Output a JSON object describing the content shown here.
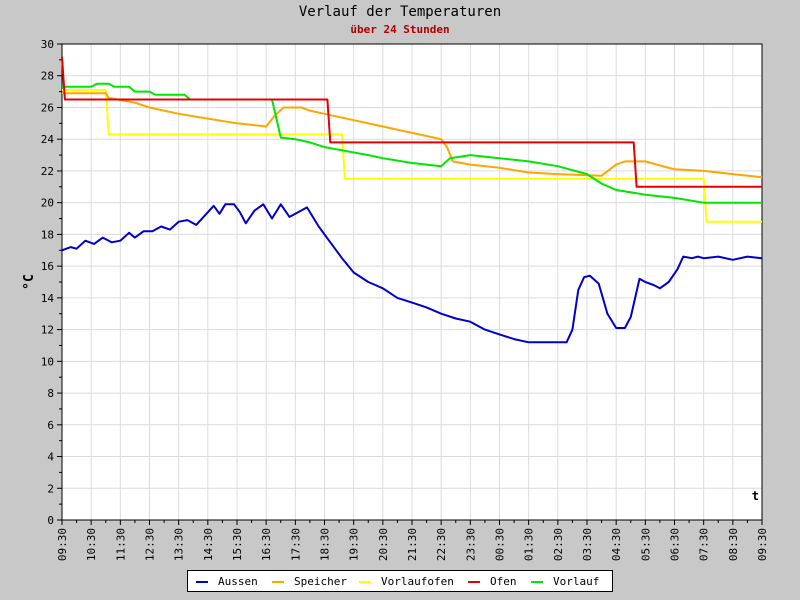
{
  "colors": {
    "Aussen": "#0000cc",
    "Speicher": "#ffa500",
    "Vorlaufofen": "#ffff00",
    "Ofen": "#e60000",
    "Vorlauf": "#00e600"
  },
  "chart_data": {
    "type": "line",
    "title": "Verlauf der Temperaturen",
    "subtitle": "über 24 Stunden",
    "ylabel": "°C",
    "xlabel": "t",
    "ylim": [
      0,
      30
    ],
    "yticks": [
      0,
      2,
      4,
      6,
      8,
      10,
      12,
      14,
      16,
      18,
      20,
      22,
      24,
      26,
      28,
      30
    ],
    "xticks": [
      "09:30",
      "10:30",
      "11:30",
      "12:30",
      "13:30",
      "14:30",
      "15:30",
      "16:30",
      "17:30",
      "18:30",
      "19:30",
      "20:30",
      "21:30",
      "22:30",
      "23:30",
      "00:30",
      "01:30",
      "02:30",
      "03:30",
      "04:30",
      "05:30",
      "06:30",
      "07:30",
      "08:30",
      "09:30"
    ],
    "grid": true,
    "legend_position": "bottom",
    "x_unit": "hours since 09:30",
    "series": [
      {
        "name": "Aussen",
        "points": [
          [
            0,
            17.0
          ],
          [
            0.3,
            17.2
          ],
          [
            0.5,
            17.1
          ],
          [
            0.8,
            17.6
          ],
          [
            1.1,
            17.4
          ],
          [
            1.4,
            17.8
          ],
          [
            1.7,
            17.5
          ],
          [
            2.0,
            17.6
          ],
          [
            2.3,
            18.1
          ],
          [
            2.5,
            17.8
          ],
          [
            2.8,
            18.2
          ],
          [
            3.1,
            18.2
          ],
          [
            3.4,
            18.5
          ],
          [
            3.7,
            18.3
          ],
          [
            4.0,
            18.8
          ],
          [
            4.3,
            18.9
          ],
          [
            4.6,
            18.6
          ],
          [
            4.9,
            19.2
          ],
          [
            5.2,
            19.8
          ],
          [
            5.4,
            19.3
          ],
          [
            5.6,
            19.9
          ],
          [
            5.9,
            19.9
          ],
          [
            6.1,
            19.4
          ],
          [
            6.3,
            18.7
          ],
          [
            6.6,
            19.5
          ],
          [
            6.9,
            19.9
          ],
          [
            7.2,
            19.0
          ],
          [
            7.5,
            19.9
          ],
          [
            7.8,
            19.1
          ],
          [
            8.0,
            19.3
          ],
          [
            8.4,
            19.7
          ],
          [
            8.8,
            18.5
          ],
          [
            9.2,
            17.5
          ],
          [
            9.6,
            16.5
          ],
          [
            10.0,
            15.6
          ],
          [
            10.5,
            15.0
          ],
          [
            11.0,
            14.6
          ],
          [
            11.5,
            14.0
          ],
          [
            12.0,
            13.7
          ],
          [
            12.5,
            13.4
          ],
          [
            13.0,
            13.0
          ],
          [
            13.5,
            12.7
          ],
          [
            14.0,
            12.5
          ],
          [
            14.5,
            12.0
          ],
          [
            15.0,
            11.7
          ],
          [
            15.5,
            11.4
          ],
          [
            16.0,
            11.2
          ],
          [
            16.5,
            11.2
          ],
          [
            17.0,
            11.2
          ],
          [
            17.3,
            11.2
          ],
          [
            17.5,
            12.0
          ],
          [
            17.7,
            14.5
          ],
          [
            17.9,
            15.3
          ],
          [
            18.1,
            15.4
          ],
          [
            18.4,
            14.9
          ],
          [
            18.7,
            13.0
          ],
          [
            19.0,
            12.1
          ],
          [
            19.3,
            12.1
          ],
          [
            19.5,
            12.8
          ],
          [
            19.8,
            15.2
          ],
          [
            20.0,
            15.0
          ],
          [
            20.3,
            14.8
          ],
          [
            20.5,
            14.6
          ],
          [
            20.8,
            15.0
          ],
          [
            21.1,
            15.8
          ],
          [
            21.3,
            16.6
          ],
          [
            21.6,
            16.5
          ],
          [
            21.8,
            16.6
          ],
          [
            22.0,
            16.5
          ],
          [
            22.5,
            16.6
          ],
          [
            23.0,
            16.4
          ],
          [
            23.5,
            16.6
          ],
          [
            24.0,
            16.5
          ]
        ]
      },
      {
        "name": "Speicher",
        "points": [
          [
            0,
            26.9
          ],
          [
            1.5,
            26.9
          ],
          [
            1.6,
            26.6
          ],
          [
            2.5,
            26.3
          ],
          [
            3.0,
            26.0
          ],
          [
            4.0,
            25.6
          ],
          [
            5.0,
            25.3
          ],
          [
            6.0,
            25.0
          ],
          [
            7.0,
            24.8
          ],
          [
            7.3,
            25.5
          ],
          [
            7.6,
            26.0
          ],
          [
            8.2,
            26.0
          ],
          [
            8.5,
            25.8
          ],
          [
            9.0,
            25.6
          ],
          [
            10.0,
            25.2
          ],
          [
            11.0,
            24.8
          ],
          [
            12.0,
            24.4
          ],
          [
            13.0,
            24.0
          ],
          [
            13.2,
            23.5
          ],
          [
            13.4,
            22.6
          ],
          [
            14.0,
            22.4
          ],
          [
            15.0,
            22.2
          ],
          [
            16.0,
            21.9
          ],
          [
            17.0,
            21.8
          ],
          [
            18.5,
            21.7
          ],
          [
            19.0,
            22.4
          ],
          [
            19.3,
            22.6
          ],
          [
            20.0,
            22.6
          ],
          [
            20.4,
            22.4
          ],
          [
            21.0,
            22.1
          ],
          [
            22.0,
            22.0
          ],
          [
            23.0,
            21.8
          ],
          [
            24.0,
            21.6
          ]
        ]
      },
      {
        "name": "Vorlaufofen",
        "points": [
          [
            0,
            27.1
          ],
          [
            1.5,
            27.1
          ],
          [
            1.6,
            24.3
          ],
          [
            9.6,
            24.3
          ],
          [
            9.7,
            21.5
          ],
          [
            22.0,
            21.5
          ],
          [
            22.1,
            18.8
          ],
          [
            24.0,
            18.8
          ]
        ]
      },
      {
        "name": "Ofen",
        "points": [
          [
            0,
            29.2
          ],
          [
            0.1,
            26.5
          ],
          [
            9.1,
            26.5
          ],
          [
            9.2,
            23.8
          ],
          [
            19.6,
            23.8
          ],
          [
            19.7,
            21.0
          ],
          [
            24.0,
            21.0
          ]
        ]
      },
      {
        "name": "Vorlauf",
        "points": [
          [
            0,
            27.3
          ],
          [
            1.0,
            27.3
          ],
          [
            1.2,
            27.5
          ],
          [
            1.6,
            27.5
          ],
          [
            1.8,
            27.3
          ],
          [
            2.3,
            27.3
          ],
          [
            2.5,
            27.0
          ],
          [
            3.0,
            27.0
          ],
          [
            3.2,
            26.8
          ],
          [
            4.2,
            26.8
          ],
          [
            4.4,
            26.5
          ],
          [
            6.0,
            26.5
          ],
          [
            7.2,
            26.5
          ],
          [
            7.5,
            24.1
          ],
          [
            8.0,
            24.0
          ],
          [
            8.5,
            23.8
          ],
          [
            9.0,
            23.5
          ],
          [
            9.6,
            23.3
          ],
          [
            10.5,
            23.0
          ],
          [
            11.0,
            22.8
          ],
          [
            12.0,
            22.5
          ],
          [
            13.0,
            22.3
          ],
          [
            13.3,
            22.8
          ],
          [
            14.0,
            23.0
          ],
          [
            15.0,
            22.8
          ],
          [
            16.0,
            22.6
          ],
          [
            17.0,
            22.3
          ],
          [
            18.0,
            21.8
          ],
          [
            18.5,
            21.2
          ],
          [
            19.0,
            20.8
          ],
          [
            20.0,
            20.5
          ],
          [
            21.0,
            20.3
          ],
          [
            22.0,
            20.0
          ],
          [
            24.0,
            20.0
          ]
        ]
      }
    ]
  }
}
